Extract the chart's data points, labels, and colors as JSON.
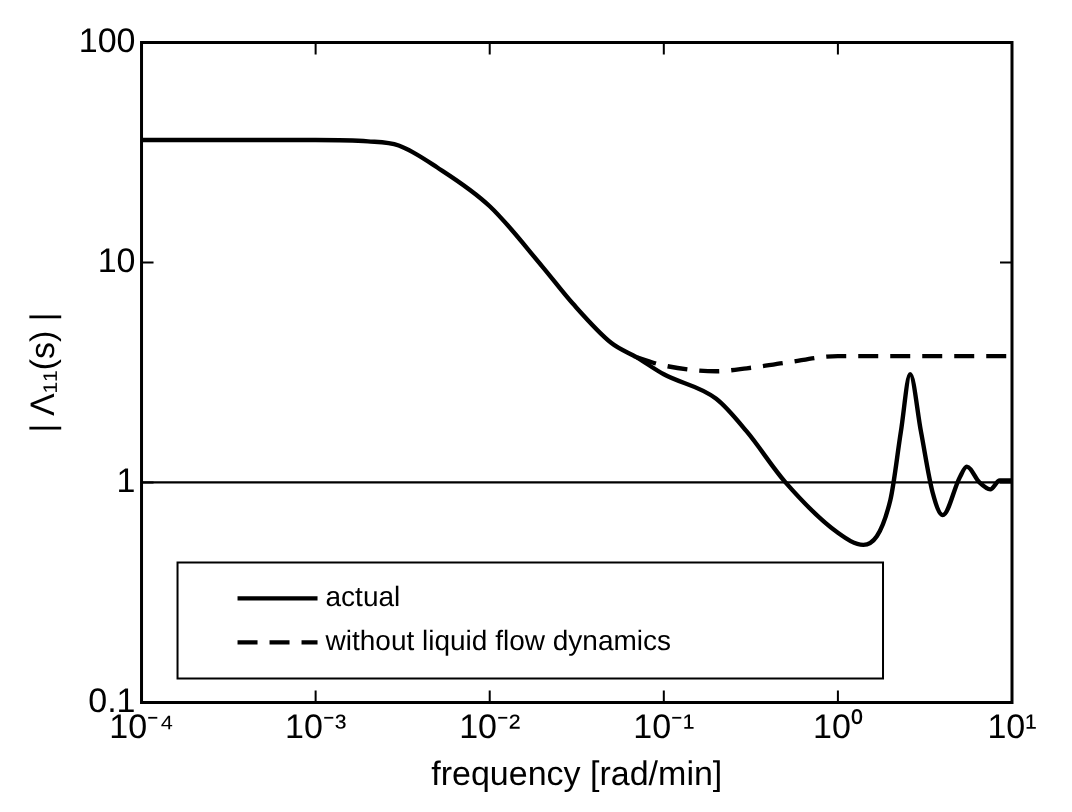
{
  "chart_data": {
    "type": "line",
    "xlabel": "frequency [rad/min]",
    "ylabel": "| Λ₁₁(s) |",
    "log": "xy",
    "xlim": [
      0.0001,
      10
    ],
    "ylim": [
      0.1,
      100
    ],
    "xticks": [
      {
        "value": 0.0001,
        "label": "10⁻⁴"
      },
      {
        "value": 0.001,
        "label": "10⁻³"
      },
      {
        "value": 0.01,
        "label": "10⁻²"
      },
      {
        "value": 0.1,
        "label": "10⁻¹"
      },
      {
        "value": 1,
        "label": "10⁰"
      },
      {
        "value": 10,
        "label": "10¹"
      }
    ],
    "yticks": [
      0.1,
      1,
      10,
      100
    ],
    "grid": false,
    "legend": "bottom left",
    "marker": "none",
    "series": [
      {
        "name": "actual",
        "color": "#000000",
        "line_style": "solid",
        "x": [
          0.0001,
          0.0003,
          0.001,
          0.002,
          0.003,
          0.005,
          0.01,
          0.02,
          0.03,
          0.05,
          0.07,
          0.1,
          0.2,
          0.3,
          0.5,
          1,
          1.4,
          2,
          2.3,
          2.6,
          3,
          3.5,
          4,
          5,
          5.5,
          6.5,
          7.5,
          8.5,
          10
        ],
        "values": [
          36,
          36,
          36,
          35.5,
          34,
          27,
          18,
          9.6,
          6.5,
          4.3,
          3.7,
          3.1,
          2.4,
          1.7,
          1,
          0.59,
          0.52,
          0.83,
          1.7,
          3.1,
          1.7,
          0.9,
          0.71,
          1.05,
          1.18,
          1,
          0.93,
          1.02,
          1.02
        ]
      },
      {
        "name": "without liquid flow dynamics",
        "color": "#000000",
        "line_style": "dashed",
        "x": [
          0.07,
          0.1,
          0.2,
          0.3,
          0.5,
          1,
          2,
          5,
          10
        ],
        "values": [
          3.7,
          3.4,
          3.2,
          3.3,
          3.5,
          3.75,
          3.75,
          3.75,
          3.75
        ]
      }
    ],
    "ref_lines": [
      {
        "axis": "y",
        "value": 1,
        "color": "#000000",
        "line_style": "solid"
      }
    ]
  }
}
